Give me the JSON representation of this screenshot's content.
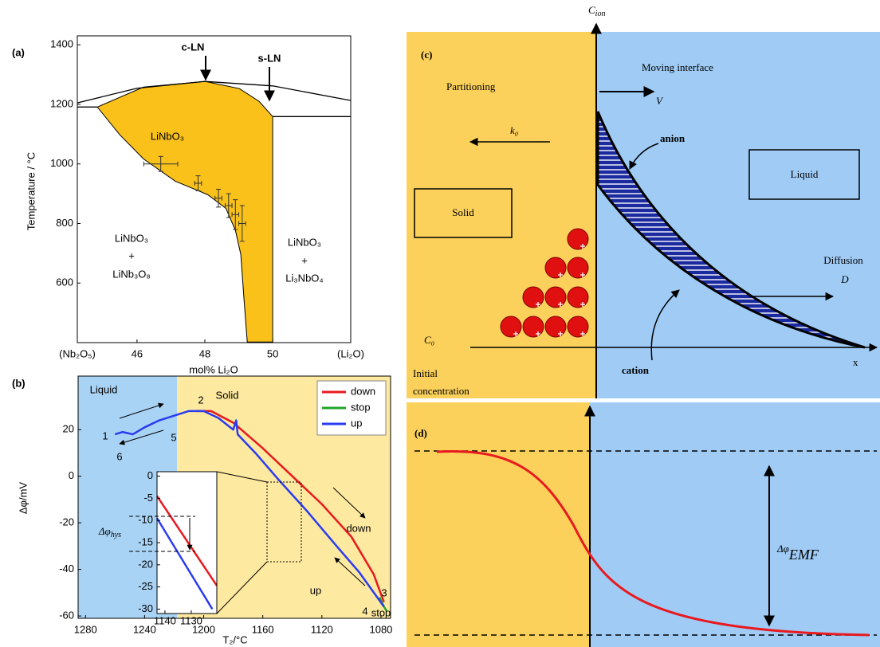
{
  "chart_data": [
    {
      "type": "line",
      "label": "(a)",
      "xlabel": "mol% Li₂O",
      "ylabel": "Temperature / °C",
      "xlim": [
        44.24,
        52.3
      ],
      "ylim": [
        400,
        1430
      ],
      "xticks": [
        {
          "value": 44.24,
          "label": "(Nb₂O₅)"
        },
        46,
        48,
        50,
        {
          "value": 52.3,
          "label": "(Li₂O)"
        }
      ],
      "yticks": [
        600,
        800,
        1000,
        1200,
        1400
      ],
      "regions": [
        {
          "color": "#f9c11a",
          "x": [
            44.83,
            46.19,
            48.0,
            49.02,
            49.6,
            50.0,
            50.0,
            49.25,
            49.16,
            49.06,
            48.9,
            48.62,
            48.08,
            47.13,
            46.19,
            45.49
          ],
          "values": [
            1191,
            1258,
            1277,
            1253,
            1210,
            1159,
            402,
            402,
            536,
            696,
            777,
            851,
            897,
            942,
            1017,
            1098
          ]
        }
      ],
      "series": [
        {
          "color": "#000000",
          "x": [
            44.24,
            46,
            48,
            50,
            52.3
          ],
          "values": [
            1205,
            1254,
            1277,
            1262,
            1213
          ]
        },
        {
          "color": "#000000",
          "x": [
            44.24,
            44.83
          ],
          "values": [
            1191,
            1191
          ]
        },
        {
          "color": "#000000",
          "x": [
            50,
            52.3
          ],
          "values": [
            1159,
            1159
          ]
        }
      ],
      "points": {
        "color": "#333333",
        "x": [
          46.7,
          47.8,
          48.4,
          48.7,
          48.9,
          49.1
        ],
        "values": [
          1000,
          935,
          885,
          860,
          830,
          800
        ],
        "xerr": [
          0.5,
          0.1,
          0.1,
          0.1,
          0.1,
          0.1
        ],
        "yerr": [
          25,
          25,
          30,
          40,
          50,
          60
        ]
      },
      "annotations": {
        "c_ln": "c-LN",
        "s_ln": "s-LN",
        "phase_mid": "LiNbO₃",
        "left_1": "LiNbO₃",
        "left_plus": "+",
        "left_2": "LiNb₃O₈",
        "right_1": "LiNbO₃",
        "right_plus": "+",
        "right_2": "Li₃NbO₄"
      }
    },
    {
      "type": "line",
      "label": "(b)",
      "xlabel": "T₂/°C",
      "ylabel": "Δφ/mV",
      "xlim": [
        1285,
        1073.5
      ],
      "ylim": [
        -61,
        43
      ],
      "xticks": [
        1280,
        1240,
        1200,
        1160,
        1120,
        1080
      ],
      "yticks": [
        20,
        0,
        -20,
        -40,
        -60
      ],
      "legend": "upper right",
      "regions": [
        {
          "color": "#a9d3f5",
          "x": [
            1285,
            1218
          ]
        },
        {
          "color": "#fde9a0",
          "x": [
            1218,
            1073.5
          ]
        }
      ],
      "series": [
        {
          "name": "down",
          "color": "#e8191f",
          "x": [
            1205,
            1195,
            1180,
            1160,
            1140,
            1120,
            1100,
            1085,
            1078
          ],
          "values": [
            28,
            28,
            23,
            12,
            0,
            -12,
            -26,
            -42,
            -54
          ]
        },
        {
          "name": "stop",
          "color": "#1fa52a",
          "x": [
            1081,
            1078,
            1076
          ],
          "values": [
            -52,
            -56,
            -58
          ]
        },
        {
          "name": "up",
          "color": "#2a3cf0",
          "x": [
            1260,
            1255,
            1248,
            1240,
            1230,
            1220,
            1210,
            1200,
            1190,
            1180,
            1178,
            1177,
            1165,
            1150,
            1130,
            1110,
            1095,
            1078
          ],
          "values": [
            18,
            19,
            18,
            21,
            24,
            26,
            28,
            28,
            25,
            20,
            24,
            18,
            10,
            -1,
            -15,
            -30,
            -41,
            -56
          ]
        }
      ],
      "annotations": {
        "liquid": "Liquid",
        "solid": "Solid",
        "p1": "1",
        "p2": "2",
        "p3": "3",
        "p4": "4",
        "p5": "5",
        "p6": "6",
        "down": "down",
        "up": "up",
        "stop": "stop"
      }
    },
    {
      "type": "line",
      "xlim": [
        1143,
        1120.3
      ],
      "ylim": [
        -31,
        1
      ],
      "xticks": [
        1140,
        1130
      ],
      "yticks": [
        0,
        -5,
        -10,
        -15,
        -20,
        -25,
        -30
      ],
      "series": [
        {
          "color": "#e8191f",
          "x": [
            1143,
            1120.3
          ],
          "values": [
            -4.5,
            -24.7
          ]
        },
        {
          "color": "#2a3cf0",
          "x": [
            1143,
            1122
          ],
          "values": [
            -9.5,
            -30
          ]
        }
      ],
      "annotations": {
        "hys": {
          "main": "Δφ",
          "sub": "hys"
        }
      }
    }
  ],
  "panel_c": {
    "label": "(c)",
    "axis_y": {
      "main": "C",
      "sub": "ion"
    },
    "partitioning": "Partitioning",
    "k0": "k₀",
    "moving_interface": "Moving interface",
    "v": "V",
    "anion": "anion",
    "solid": "Solid",
    "liquid": "Liquid",
    "diffusion": "Diffusion",
    "d": "D",
    "c0": "C₀",
    "cation": "cation",
    "x": "x",
    "initial": [
      "Initial",
      "concentration"
    ]
  },
  "panel_d": {
    "label": "(d)",
    "emf": {
      "main": "Δφ",
      "sub": "EMF"
    }
  }
}
